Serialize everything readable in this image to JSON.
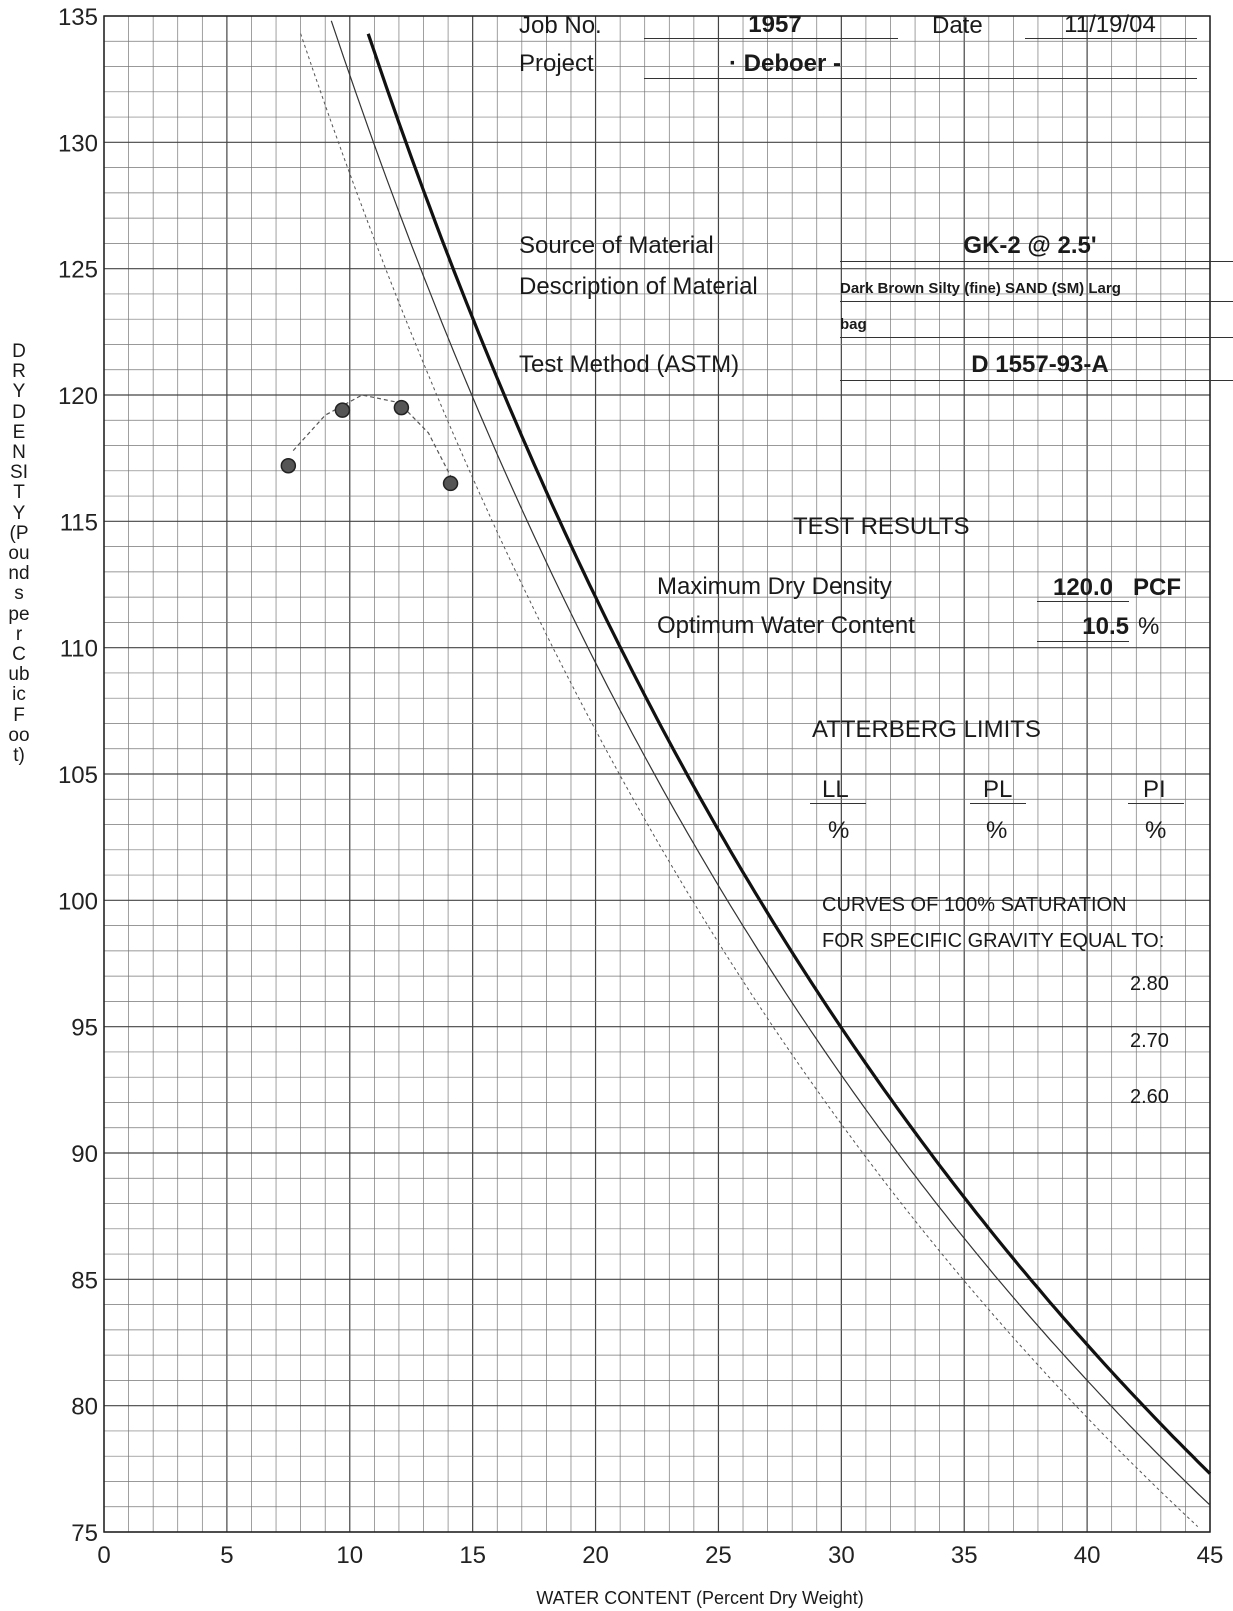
{
  "header": {
    "job_label": "Job No.",
    "job_value": "1957",
    "date_label": "Date",
    "date_value": "11/19/04",
    "project_label": "Project",
    "project_value": "· Deboer -",
    "source_label": "Source of Material",
    "source_value": "GK-2  @  2.5'",
    "description_label": "Description of Material",
    "description_value_line1": "Dark Brown Silty (fine) SAND (SM) Larg",
    "description_value_line2": "bag",
    "method_label": "Test Method (ASTM)",
    "method_value": "D 1557-93-A"
  },
  "test_results": {
    "title": "TEST RESULTS",
    "max_density_label": "Maximum Dry Density",
    "max_density_value": "120.0",
    "max_density_unit": "PCF",
    "optimum_wc_label": "Optimum Water Content",
    "optimum_wc_value": "10.5",
    "optimum_wc_unit": "%"
  },
  "atterberg": {
    "title": "ATTERBERG LIMITS",
    "ll_label": "LL",
    "pl_label": "PL",
    "pi_label": "PI",
    "ll_value": "%",
    "pl_value": "%",
    "pi_value": "%"
  },
  "saturation_note": {
    "line1": "CURVES OF 100% SATURATION",
    "line2": "FOR SPECIFIC GRAVITY EQUAL TO:",
    "gravities": [
      "2.80",
      "2.70",
      "2.60"
    ]
  },
  "chart_data": {
    "type": "scatter",
    "xlabel": "WATER CONTENT (Percent Dry Weight)",
    "ylabel": "DRY DENSITY (Pounds per Cubic Foot)",
    "xlim": [
      0,
      45
    ],
    "ylim": [
      75,
      135
    ],
    "x_ticks": [
      0,
      5,
      10,
      15,
      20,
      25,
      30,
      35,
      40,
      45
    ],
    "y_ticks": [
      135,
      130,
      125,
      120,
      115,
      110,
      105,
      100,
      95,
      90,
      85,
      80,
      75
    ],
    "grid": true,
    "series": [
      {
        "name": "compaction test points",
        "points": [
          [
            7.5,
            117.2
          ],
          [
            9.7,
            119.4
          ],
          [
            12.1,
            119.5
          ],
          [
            14.1,
            116.5
          ]
        ]
      }
    ],
    "fitted_curve": {
      "points": [
        [
          7.7,
          117.8
        ],
        [
          9.0,
          119.2
        ],
        [
          10.5,
          120.0
        ],
        [
          12.0,
          119.7
        ],
        [
          13.2,
          118.5
        ],
        [
          14.1,
          116.8
        ]
      ]
    },
    "saturation_curves": [
      {
        "specific_gravity": 2.8,
        "style": "heavy"
      },
      {
        "specific_gravity": 2.7,
        "style": "medium"
      },
      {
        "specific_gravity": 2.6,
        "style": "light"
      }
    ]
  }
}
